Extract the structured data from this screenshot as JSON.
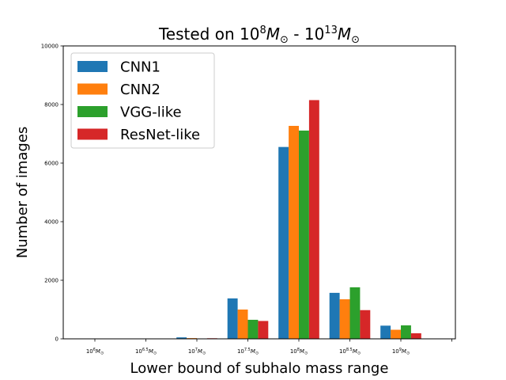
{
  "chart_data": {
    "type": "bar",
    "title_parts": [
      "Tested on 10",
      "8",
      "M",
      "⊙",
      " - 10",
      "13",
      "M",
      "⊙"
    ],
    "xlabel": "Lower bound of subhalo mass range",
    "ylabel": "Number of images",
    "ylim": [
      0,
      10000
    ],
    "yticks": [
      "0",
      "2000",
      "4000",
      "6000",
      "8000",
      "10000"
    ],
    "ytick_values": [
      0,
      2000,
      4000,
      6000,
      8000,
      10000
    ],
    "categories": [
      {
        "base": "10",
        "exp": "6",
        "unit": "M",
        "sub": "⊙"
      },
      {
        "base": "10",
        "exp": "6.5",
        "unit": "M",
        "sub": "⊙"
      },
      {
        "base": "10",
        "exp": "7",
        "unit": "M",
        "sub": "⊙"
      },
      {
        "base": "10",
        "exp": "7.5",
        "unit": "M",
        "sub": "⊙"
      },
      {
        "base": "10",
        "exp": "8",
        "unit": "M",
        "sub": "⊙"
      },
      {
        "base": "10",
        "exp": "8.5",
        "unit": "M",
        "sub": "⊙"
      },
      {
        "base": "10",
        "exp": "9",
        "unit": "M",
        "sub": "⊙"
      }
    ],
    "series": [
      {
        "name": "CNN1",
        "color": "#1f77b4",
        "values": [
          0,
          0,
          50,
          1380,
          6550,
          1570,
          450
        ]
      },
      {
        "name": "CNN2",
        "color": "#ff7f0e",
        "values": [
          0,
          0,
          25,
          1000,
          7270,
          1350,
          310
        ]
      },
      {
        "name": "VGG-like",
        "color": "#2ca02c",
        "values": [
          0,
          0,
          10,
          650,
          7110,
          1760,
          460
        ]
      },
      {
        "name": "ResNet-like",
        "color": "#d62728",
        "values": [
          0,
          0,
          20,
          610,
          8150,
          980,
          190
        ]
      }
    ],
    "legend_position": "top-left",
    "grid": false
  }
}
